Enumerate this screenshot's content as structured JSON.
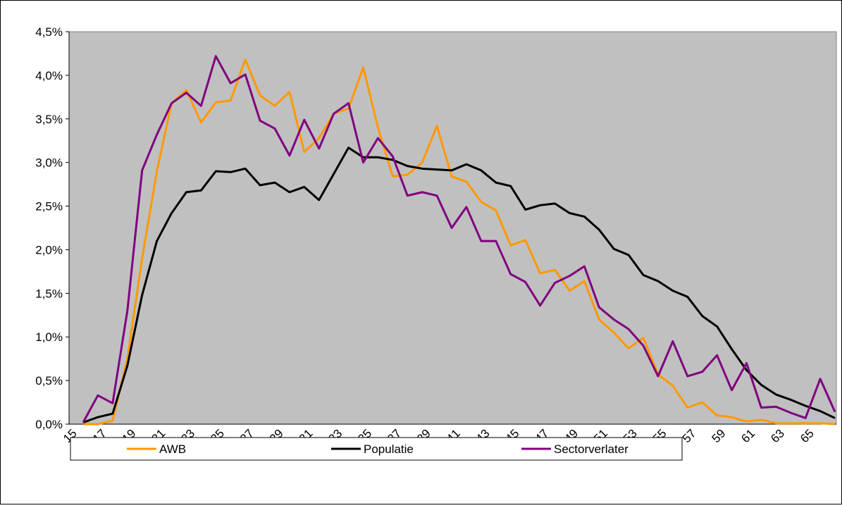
{
  "chart_data": {
    "type": "line",
    "categories": [
      "15",
      null,
      "17",
      null,
      "19",
      null,
      "21",
      null,
      "23",
      null,
      "25",
      null,
      "27",
      null,
      "29",
      null,
      "31",
      null,
      "33",
      null,
      "35",
      null,
      "37",
      null,
      "39",
      null,
      "41",
      null,
      "43",
      null,
      "45",
      null,
      "47",
      null,
      "49",
      null,
      "51",
      null,
      "53",
      null,
      "55",
      null,
      "57",
      null,
      "59",
      null,
      "61",
      null,
      "63",
      null,
      "65",
      null
    ],
    "series": [
      {
        "name": "AWB",
        "color": "#ff9900",
        "values": [
          0.0,
          0.0,
          0.04,
          0.75,
          1.9,
          2.9,
          3.68,
          3.83,
          3.46,
          3.69,
          3.71,
          4.18,
          3.77,
          3.65,
          3.81,
          3.12,
          3.28,
          3.56,
          3.62,
          4.09,
          3.4,
          2.84,
          2.86,
          3.0,
          3.42,
          2.84,
          2.78,
          2.55,
          2.45,
          2.05,
          2.11,
          1.73,
          1.77,
          1.53,
          1.64,
          1.2,
          1.05,
          0.87,
          0.99,
          0.57,
          0.44,
          0.19,
          0.25,
          0.1,
          0.08,
          0.03,
          0.05,
          0.01,
          0.01,
          0.01,
          0.01,
          0.0
        ]
      },
      {
        "name": "Populatie",
        "color": "#000000",
        "values": [
          0.02,
          0.08,
          0.12,
          0.67,
          1.48,
          2.1,
          2.42,
          2.66,
          2.68,
          2.9,
          2.89,
          2.93,
          2.74,
          2.77,
          2.66,
          2.72,
          2.57,
          2.87,
          3.17,
          3.06,
          3.06,
          3.03,
          2.96,
          2.93,
          2.92,
          2.91,
          2.98,
          2.91,
          2.77,
          2.73,
          2.46,
          2.51,
          2.53,
          2.42,
          2.38,
          2.23,
          2.01,
          1.94,
          1.71,
          1.64,
          1.53,
          1.46,
          1.24,
          1.12,
          0.86,
          0.62,
          0.45,
          0.34,
          0.28,
          0.21,
          0.15,
          0.07
        ]
      },
      {
        "name": "Sectorverlater",
        "color": "#800080",
        "values": [
          0.02,
          0.33,
          0.24,
          1.3,
          2.91,
          3.32,
          3.68,
          3.8,
          3.65,
          4.22,
          3.91,
          4.01,
          3.48,
          3.39,
          3.08,
          3.49,
          3.16,
          3.56,
          3.68,
          3.0,
          3.28,
          3.07,
          2.62,
          2.66,
          2.62,
          2.25,
          2.49,
          2.1,
          2.1,
          1.72,
          1.63,
          1.36,
          1.62,
          1.7,
          1.81,
          1.34,
          1.2,
          1.09,
          0.9,
          0.55,
          0.95,
          0.55,
          0.6,
          0.79,
          0.39,
          0.7,
          0.19,
          0.2,
          0.13,
          0.07,
          0.52,
          0.14
        ]
      }
    ],
    "ylim": [
      0,
      4.5
    ],
    "yticks": [
      {
        "value": 0,
        "label": "0,0%"
      },
      {
        "value": 0.5,
        "label": "0,5%"
      },
      {
        "value": 1,
        "label": "1,0%"
      },
      {
        "value": 1.5,
        "label": "1,5%"
      },
      {
        "value": 2,
        "label": "2,0%"
      },
      {
        "value": 2.5,
        "label": "2,5%"
      },
      {
        "value": 3,
        "label": "3,0%"
      },
      {
        "value": 3.5,
        "label": "3,5%"
      },
      {
        "value": 4,
        "label": "4,0%"
      },
      {
        "value": 4.5,
        "label": "4,5%"
      }
    ],
    "grid": false,
    "plot_background": "#c0c0c0",
    "legend": "bottom"
  }
}
